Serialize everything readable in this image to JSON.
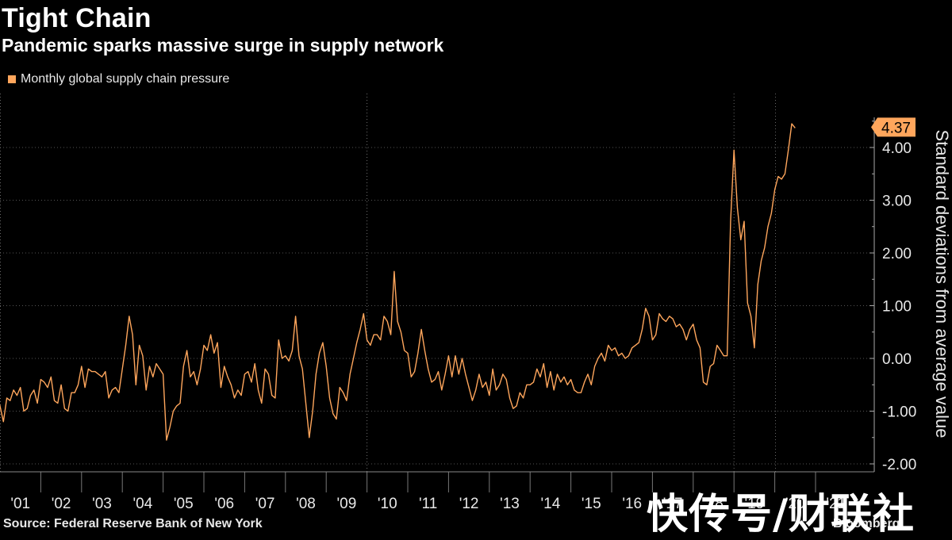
{
  "chart_data": {
    "type": "line",
    "title": "Tight Chain",
    "subtitle": "Pandemic sparks massive surge in supply network",
    "legend": [
      {
        "name": "Monthly global supply chain pressure",
        "color": "#ffa65c"
      }
    ],
    "ylabel": "Standard deviations from average value",
    "ylim": [
      -2.2,
      4.9
    ],
    "y_ticks": [
      -2.0,
      -1.0,
      0.0,
      1.0,
      2.0,
      3.0,
      4.0
    ],
    "y_tick_labels": [
      "-2.00",
      "-1.00",
      "0.00",
      "1.00",
      "2.00",
      "3.00",
      "4.00"
    ],
    "x_tick_labels": [
      "'01",
      "'02",
      "'03",
      "'04",
      "'05",
      "'06",
      "'07",
      "'08",
      "'09",
      "'10",
      "'11",
      "'12",
      "'13",
      "'14",
      "'15",
      "'16",
      "'17",
      "'18",
      "'19",
      "'20",
      "'21"
    ],
    "grid": "vertical dotted",
    "last_value_label": "4.37",
    "series": [
      {
        "name": "Monthly global supply chain pressure",
        "start": "2000-10",
        "values": [
          -0.9,
          -0.75,
          -0.65,
          -0.9,
          -1.2,
          -0.75,
          -0.8,
          -0.6,
          -0.7,
          -0.55,
          -1.0,
          -0.95,
          -0.7,
          -0.6,
          -0.85,
          -0.4,
          -0.45,
          -0.55,
          -0.35,
          -0.8,
          -0.85,
          -0.5,
          -0.95,
          -1.0,
          -0.65,
          -0.65,
          -0.5,
          -0.15,
          -0.55,
          -0.2,
          -0.25,
          -0.25,
          -0.3,
          -0.35,
          -0.25,
          -0.75,
          -0.6,
          -0.55,
          -0.65,
          -0.2,
          0.25,
          0.8,
          0.45,
          -0.5,
          0.25,
          0.05,
          -0.6,
          -0.15,
          -0.35,
          -0.1,
          -0.2,
          -0.3,
          -1.55,
          -1.3,
          -1.0,
          -0.9,
          -0.85,
          -0.15,
          0.15,
          -0.35,
          -0.25,
          -0.5,
          -0.2,
          0.25,
          0.15,
          0.45,
          0.1,
          0.3,
          -0.55,
          -0.15,
          -0.35,
          -0.5,
          -0.75,
          -0.6,
          -0.7,
          -0.3,
          -0.25,
          -0.45,
          -0.1,
          -0.6,
          -0.85,
          -0.2,
          -0.3,
          -0.7,
          -0.75,
          0.35,
          0.0,
          0.05,
          -0.05,
          0.15,
          0.8,
          0.05,
          -0.2,
          -0.85,
          -1.5,
          -1.0,
          -0.3,
          0.1,
          0.3,
          -0.15,
          -0.75,
          -1.05,
          -1.15,
          -0.55,
          -0.65,
          -0.8,
          -0.3,
          0.0,
          0.3,
          0.55,
          0.85,
          0.35,
          0.25,
          0.45,
          0.45,
          0.35,
          0.8,
          0.7,
          0.45,
          1.65,
          0.7,
          0.5,
          0.15,
          0.1,
          -0.35,
          -0.25,
          0.1,
          0.55,
          0.15,
          -0.2,
          -0.45,
          -0.4,
          -0.25,
          -0.6,
          -0.3,
          0.05,
          -0.35,
          0.05,
          -0.3,
          0.0,
          -0.3,
          -0.55,
          -0.8,
          -0.6,
          -0.3,
          -0.55,
          -0.45,
          -0.7,
          -0.2,
          -0.6,
          -0.5,
          -0.3,
          -0.4,
          -0.75,
          -0.95,
          -0.9,
          -0.65,
          -0.75,
          -0.5,
          -0.5,
          -0.45,
          -0.2,
          -0.35,
          -0.1,
          -0.55,
          -0.25,
          -0.6,
          -0.3,
          -0.45,
          -0.35,
          -0.5,
          -0.4,
          -0.6,
          -0.65,
          -0.65,
          -0.45,
          -0.3,
          -0.5,
          -0.15,
          0.0,
          0.1,
          -0.05,
          0.25,
          0.15,
          0.2,
          0.05,
          0.1,
          0.0,
          0.05,
          0.2,
          0.25,
          0.3,
          0.55,
          0.95,
          0.8,
          0.35,
          0.45,
          0.85,
          0.75,
          0.7,
          0.8,
          0.75,
          0.6,
          0.65,
          0.55,
          0.35,
          0.55,
          0.65,
          0.35,
          0.2,
          -0.45,
          -0.5,
          -0.15,
          -0.1,
          0.25,
          0.15,
          0.05,
          0.05,
          2.6,
          3.95,
          2.85,
          2.25,
          2.6,
          1.05,
          0.8,
          0.2,
          1.4,
          1.85,
          2.1,
          2.5,
          2.75,
          3.2,
          3.45,
          3.4,
          3.5,
          3.95,
          4.45,
          4.37
        ]
      }
    ]
  },
  "source": "Source: Federal Reserve Bank of New York",
  "brand": "Bloomberg",
  "watermark": "快传号/财联社"
}
